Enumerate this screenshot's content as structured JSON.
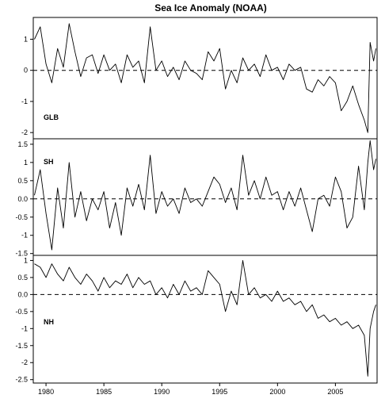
{
  "chart_data": {
    "type": "line",
    "title": "Sea Ice Anomaly (NOAA)",
    "xlabel": "",
    "x_ticks": [
      "1980",
      "1985",
      "1990",
      "1995",
      "2000",
      "2005"
    ],
    "xlim": [
      1978.9,
      2008.6
    ],
    "reference_line": {
      "value": 0,
      "style": "dashed"
    },
    "grid": false,
    "panels": [
      {
        "name": "GLB",
        "ylim": [
          -2.2,
          1.7
        ],
        "yticks": [
          -2,
          -1,
          0,
          1
        ],
        "x": [
          1979.0,
          1979.5,
          1980.0,
          1980.5,
          1981.0,
          1981.5,
          1982.0,
          1982.5,
          1983.0,
          1983.5,
          1984.0,
          1984.5,
          1985.0,
          1985.5,
          1986.0,
          1986.5,
          1987.0,
          1987.5,
          1988.0,
          1988.5,
          1989.0,
          1989.5,
          1990.0,
          1990.5,
          1991.0,
          1991.5,
          1992.0,
          1992.5,
          1993.0,
          1993.5,
          1994.0,
          1994.5,
          1995.0,
          1995.5,
          1996.0,
          1996.5,
          1997.0,
          1997.5,
          1998.0,
          1998.5,
          1999.0,
          1999.5,
          2000.0,
          2000.5,
          2001.0,
          2001.5,
          2002.0,
          2002.5,
          2003.0,
          2003.5,
          2004.0,
          2004.5,
          2005.0,
          2005.5,
          2006.0,
          2006.5,
          2007.0,
          2007.5,
          2007.8,
          2008.0,
          2008.3,
          2008.5
        ],
        "values": [
          1.0,
          1.4,
          0.2,
          -0.4,
          0.7,
          0.1,
          1.5,
          0.6,
          -0.2,
          0.4,
          0.5,
          -0.1,
          0.5,
          0.0,
          0.2,
          -0.4,
          0.5,
          0.1,
          0.3,
          -0.4,
          1.4,
          0.0,
          0.3,
          -0.2,
          0.1,
          -0.3,
          0.3,
          0.0,
          -0.1,
          -0.3,
          0.6,
          0.3,
          0.7,
          -0.6,
          0.0,
          -0.4,
          0.4,
          0.0,
          0.2,
          -0.2,
          0.5,
          0.0,
          0.1,
          -0.3,
          0.2,
          0.0,
          0.1,
          -0.6,
          -0.7,
          -0.3,
          -0.5,
          -0.2,
          -0.4,
          -1.3,
          -1.0,
          -0.5,
          -1.1,
          -1.6,
          -2.0,
          0.9,
          0.3,
          0.7
        ]
      },
      {
        "name": "SH",
        "ylim": [
          -1.55,
          1.65
        ],
        "yticks": [
          -1.5,
          -1.0,
          -0.5,
          0.0,
          0.5,
          1.0,
          1.5
        ],
        "x": [
          1979.0,
          1979.5,
          1980.0,
          1980.5,
          1981.0,
          1981.5,
          1982.0,
          1982.5,
          1983.0,
          1983.5,
          1984.0,
          1984.5,
          1985.0,
          1985.5,
          1986.0,
          1986.5,
          1987.0,
          1987.5,
          1988.0,
          1988.5,
          1989.0,
          1989.5,
          1990.0,
          1990.5,
          1991.0,
          1991.5,
          1992.0,
          1992.5,
          1993.0,
          1993.5,
          1994.0,
          1994.5,
          1995.0,
          1995.5,
          1996.0,
          1996.5,
          1997.0,
          1997.5,
          1998.0,
          1998.5,
          1999.0,
          1999.5,
          2000.0,
          2000.5,
          2001.0,
          2001.5,
          2002.0,
          2002.5,
          2003.0,
          2003.5,
          2004.0,
          2004.5,
          2005.0,
          2005.5,
          2006.0,
          2006.5,
          2007.0,
          2007.5,
          2007.8,
          2008.0,
          2008.3,
          2008.5
        ],
        "values": [
          0.1,
          0.8,
          -0.4,
          -1.4,
          0.3,
          -0.8,
          1.0,
          -0.5,
          0.2,
          -0.6,
          0.0,
          -0.3,
          0.2,
          -0.8,
          -0.1,
          -1.0,
          0.3,
          -0.2,
          0.4,
          -0.3,
          1.2,
          -0.4,
          0.2,
          -0.2,
          0.0,
          -0.4,
          0.3,
          -0.1,
          0.0,
          -0.2,
          0.2,
          0.6,
          0.4,
          -0.1,
          0.3,
          -0.3,
          1.2,
          0.1,
          0.5,
          0.0,
          0.6,
          0.1,
          0.2,
          -0.3,
          0.2,
          -0.2,
          0.3,
          -0.3,
          -0.9,
          0.0,
          0.1,
          -0.2,
          0.6,
          0.2,
          -0.8,
          -0.5,
          0.9,
          -0.3,
          1.0,
          1.6,
          0.8,
          1.1
        ]
      },
      {
        "name": "NH",
        "ylim": [
          -2.6,
          1.15
        ],
        "yticks": [
          -2.5,
          -2.0,
          -1.5,
          -1.0,
          -0.5,
          0.0,
          0.5,
          1.0
        ],
        "x": [
          1979.0,
          1979.5,
          1980.0,
          1980.5,
          1981.0,
          1981.5,
          1982.0,
          1982.5,
          1983.0,
          1983.5,
          1984.0,
          1984.5,
          1985.0,
          1985.5,
          1986.0,
          1986.5,
          1987.0,
          1987.5,
          1988.0,
          1988.5,
          1989.0,
          1989.5,
          1990.0,
          1990.5,
          1991.0,
          1991.5,
          1992.0,
          1992.5,
          1993.0,
          1993.5,
          1994.0,
          1994.5,
          1995.0,
          1995.5,
          1996.0,
          1996.5,
          1997.0,
          1997.5,
          1998.0,
          1998.5,
          1999.0,
          1999.5,
          2000.0,
          2000.5,
          2001.0,
          2001.5,
          2002.0,
          2002.5,
          2003.0,
          2003.5,
          2004.0,
          2004.5,
          2005.0,
          2005.5,
          2006.0,
          2006.5,
          2007.0,
          2007.5,
          2007.8,
          2008.0,
          2008.3,
          2008.5
        ],
        "values": [
          0.9,
          0.8,
          0.5,
          0.9,
          0.6,
          0.4,
          0.8,
          0.5,
          0.3,
          0.6,
          0.4,
          0.1,
          0.5,
          0.2,
          0.4,
          0.3,
          0.6,
          0.2,
          0.5,
          0.3,
          0.4,
          0.0,
          0.2,
          -0.1,
          0.3,
          0.0,
          0.4,
          0.1,
          0.2,
          0.0,
          0.7,
          0.5,
          0.3,
          -0.5,
          0.1,
          -0.3,
          1.0,
          0.0,
          0.2,
          -0.1,
          0.0,
          -0.2,
          0.1,
          -0.2,
          -0.1,
          -0.3,
          -0.2,
          -0.5,
          -0.3,
          -0.7,
          -0.6,
          -0.8,
          -0.7,
          -0.9,
          -0.8,
          -1.0,
          -0.9,
          -1.2,
          -2.4,
          -1.0,
          -0.5,
          -0.3
        ]
      }
    ]
  }
}
